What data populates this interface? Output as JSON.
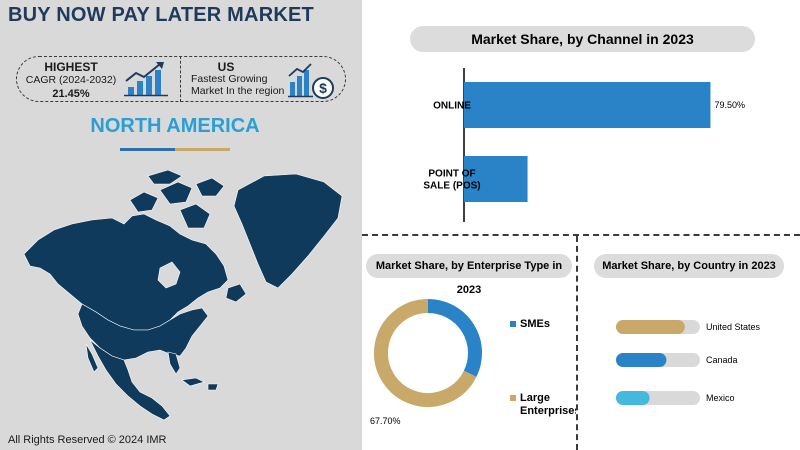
{
  "header": {
    "title": "BUY NOW PAY LATER MARKET"
  },
  "stats": {
    "highest": {
      "heading": "HIGHEST",
      "label": "CAGR (2024-2032)",
      "value": "21.45%"
    },
    "fastest": {
      "heading": "US",
      "line1": "Fastest Growing",
      "line2": "Market In the region"
    }
  },
  "region": {
    "title": "NORTH AMERICA"
  },
  "footer": {
    "copyright": "All Rights Reserved © 2024 IMR"
  },
  "icons": {
    "growth": "growth-chart-icon",
    "money": "dollar-chart-icon",
    "map": "north-america-map"
  },
  "colors": {
    "navy": "#1f3a5a",
    "blue": "#2a83c6",
    "gold": "#c9a96a",
    "light_blue": "#45b9dd",
    "map": "#0f3a5c"
  },
  "chart_data": [
    {
      "type": "bar",
      "orientation": "horizontal",
      "title": "Market Share, by Channel in 2023",
      "categories": [
        "ONLINE",
        "POINT OF SALE (POS)"
      ],
      "category_lines": [
        [
          "ONLINE"
        ],
        [
          "POINT OF",
          "SALE (POS)"
        ]
      ],
      "values": [
        79.5,
        20.5
      ],
      "value_labels": [
        "79.50%",
        ""
      ],
      "xlim": [
        0,
        100
      ],
      "color": "#2a83c6"
    },
    {
      "type": "pie",
      "donut": true,
      "title": "Market Share, by Enterprise Type in 2023",
      "labels": [
        "SMEs",
        "Large Enterprises"
      ],
      "legend_lines": [
        [
          "SMEs"
        ],
        [
          "Large",
          "Enterprises"
        ]
      ],
      "values": [
        32.3,
        67.7
      ],
      "value_labels": [
        "",
        "67.70%"
      ],
      "colors": [
        "#2a83c6",
        "#c9a96a"
      ]
    },
    {
      "type": "bar",
      "orientation": "horizontal",
      "title": "Market Share, by Country in 2023",
      "categories": [
        "United States",
        "Canada",
        "Mexico"
      ],
      "values": [
        82,
        60,
        40
      ],
      "xlim": [
        0,
        100
      ],
      "colors": [
        "#c9a96a",
        "#2a83c6",
        "#45b9dd"
      ],
      "track_color": "#d9d9d9"
    }
  ]
}
